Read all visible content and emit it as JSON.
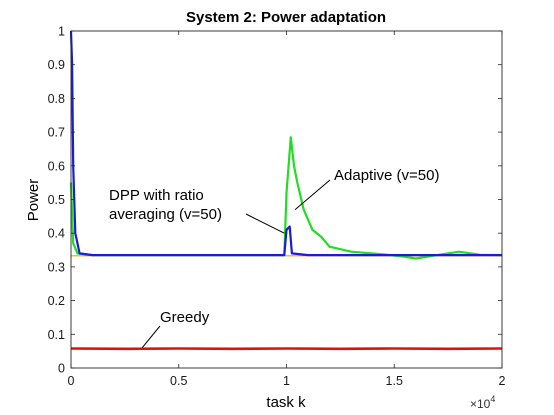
{
  "chart_data": {
    "type": "line",
    "title": "System 2: Power adaptation",
    "xlabel": "task k",
    "ylabel": "Power",
    "x_exponent_label": "×10",
    "x_exponent_power": "4",
    "xlim": [
      0,
      2
    ],
    "ylim": [
      0,
      1
    ],
    "x_ticks": [
      0,
      0.5,
      1,
      1.5,
      2
    ],
    "x_tick_labels": [
      "0",
      "0.5",
      "1",
      "1.5",
      "2"
    ],
    "y_ticks": [
      0,
      0.1,
      0.2,
      0.3,
      0.4,
      0.5,
      0.6,
      0.7,
      0.8,
      0.9,
      1
    ],
    "y_tick_labels": [
      "0",
      "0.1",
      "0.2",
      "0.3",
      "0.4",
      "0.5",
      "0.6",
      "0.7",
      "0.8",
      "0.9",
      "1"
    ],
    "grid": false,
    "series": [
      {
        "label": "Greedy",
        "color": "#e01010",
        "points": [
          [
            0,
            0.058
          ],
          [
            0.25,
            0.057
          ],
          [
            0.5,
            0.058
          ],
          [
            0.75,
            0.057
          ],
          [
            1.0,
            0.058
          ],
          [
            1.25,
            0.057
          ],
          [
            1.5,
            0.058
          ],
          [
            1.75,
            0.057
          ],
          [
            2.0,
            0.058
          ]
        ]
      },
      {
        "label": "Adaptive (v=50)",
        "color": "#22dd22",
        "points": [
          [
            0,
            0.55
          ],
          [
            0.01,
            0.37
          ],
          [
            0.03,
            0.34
          ],
          [
            0.1,
            0.335
          ],
          [
            0.5,
            0.335
          ],
          [
            0.99,
            0.335
          ],
          [
            1.0,
            0.52
          ],
          [
            1.02,
            0.685
          ],
          [
            1.035,
            0.6
          ],
          [
            1.05,
            0.55
          ],
          [
            1.08,
            0.47
          ],
          [
            1.12,
            0.41
          ],
          [
            1.16,
            0.39
          ],
          [
            1.2,
            0.36
          ],
          [
            1.3,
            0.345
          ],
          [
            1.45,
            0.337
          ],
          [
            1.55,
            0.33
          ],
          [
            1.6,
            0.325
          ],
          [
            1.7,
            0.335
          ],
          [
            1.8,
            0.345
          ],
          [
            1.9,
            0.336
          ],
          [
            2.0,
            0.335
          ]
        ]
      },
      {
        "label": "DPP with ratio averaging (v=50)",
        "color": "#1c1cd8",
        "points": [
          [
            0,
            1.0
          ],
          [
            0.005,
            0.9
          ],
          [
            0.01,
            0.6
          ],
          [
            0.02,
            0.4
          ],
          [
            0.04,
            0.34
          ],
          [
            0.1,
            0.335
          ],
          [
            0.5,
            0.335
          ],
          [
            0.99,
            0.335
          ],
          [
            1.0,
            0.41
          ],
          [
            1.015,
            0.42
          ],
          [
            1.025,
            0.34
          ],
          [
            1.1,
            0.335
          ],
          [
            1.5,
            0.335
          ],
          [
            2.0,
            0.335
          ]
        ]
      },
      {
        "label": "",
        "color": "#f5a000",
        "points": [
          [
            0,
            0.333
          ],
          [
            2.0,
            0.333
          ]
        ]
      }
    ],
    "annotations": [
      {
        "lines": [
          "Adaptive (v=50)"
        ],
        "target": [
          1.04,
          0.47
        ]
      },
      {
        "lines": [
          "DPP with ratio",
          "averaging (v=50)"
        ],
        "target": [
          0.99,
          0.4
        ]
      },
      {
        "lines": [
          "Greedy"
        ],
        "target": [
          0.33,
          0.06
        ]
      }
    ]
  }
}
